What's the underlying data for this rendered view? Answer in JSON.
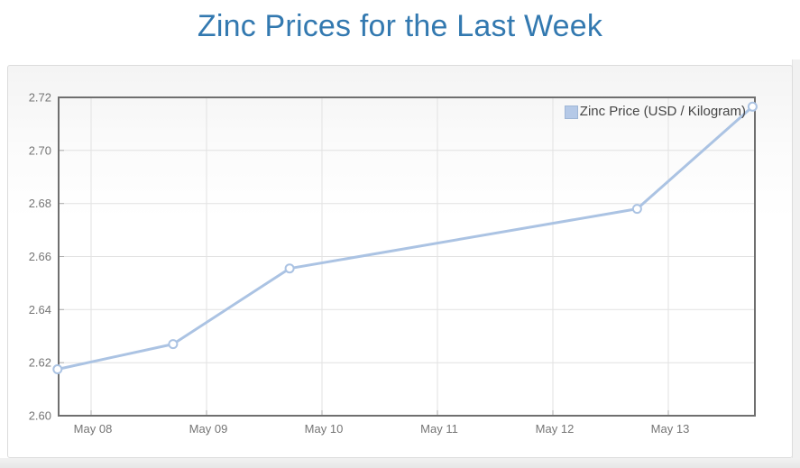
{
  "page": {
    "title": "Zinc Prices for the Last Week"
  },
  "chart_data": {
    "type": "line",
    "title": "Zinc Prices for the Last Week",
    "legend_label": "Zinc Price (USD / Kilogram)",
    "legend_position": "top-right-inside",
    "grid": true,
    "x_axis": {
      "tick_labels": [
        "May 08",
        "May 09",
        "May 10",
        "May 11",
        "May 12",
        "May 13"
      ],
      "tick_positions_days": [
        0,
        1,
        2,
        3,
        4,
        5
      ],
      "range_days": [
        -0.281,
        5.75
      ]
    },
    "y_axis": {
      "tick_labels": [
        "2.60",
        "2.62",
        "2.64",
        "2.66",
        "2.68",
        "2.70",
        "2.72"
      ],
      "tick_values": [
        2.6,
        2.62,
        2.64,
        2.66,
        2.68,
        2.7,
        2.72
      ],
      "range": [
        2.6,
        2.72
      ]
    },
    "series": [
      {
        "name": "Zinc Price (USD / Kilogram)",
        "color": "#abc3e3",
        "marker": "open-circle",
        "points": [
          {
            "x_days": -0.29,
            "price": 2.6175
          },
          {
            "x_days": 0.71,
            "price": 2.627
          },
          {
            "x_days": 1.72,
            "price": 2.6555
          },
          {
            "x_days": 4.73,
            "price": 2.678
          },
          {
            "x_days": 5.73,
            "price": 2.7165
          }
        ]
      }
    ]
  },
  "colors": {
    "title": "#3379b0",
    "line": "#abc3e3",
    "marker_fill": "#ffffff",
    "legend_swatch_fill": "#b5c9e7",
    "legend_swatch_border": "#9fb6d6",
    "legend_text": "#454545",
    "axis_border": "#6f6f6f",
    "gridline": "#e2e2e2",
    "tick": "#adadad",
    "tick_label": "#757575",
    "panel_border": "#dcdcdc",
    "gutter": "#f1f1f1"
  }
}
